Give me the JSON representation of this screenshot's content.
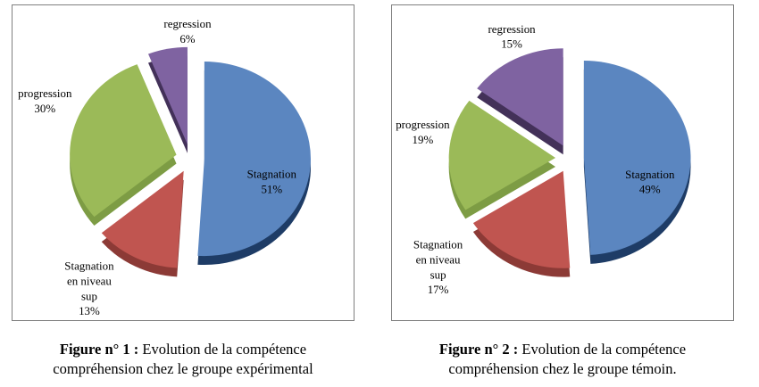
{
  "page": {
    "background": "#ffffff",
    "border_color": "#7f7f7f",
    "text_color": "#000000"
  },
  "chart_data": [
    {
      "type": "pie",
      "style": "3d-exploded",
      "title_bold": "Figure n° 1 :",
      "title_text": "Evolution de la compétence compréhension chez le groupe expérimental",
      "start_angle_deg": 0,
      "clockwise": true,
      "legend": "none",
      "slices": [
        {
          "label": "Stagnation",
          "value": 51,
          "pct_text": "51%",
          "color": "#5b86c0",
          "side_color": "#1e3c66",
          "label_lines": [
            "Stagnation",
            "51%"
          ],
          "label_inside": true,
          "label_pos": {
            "x": 76.0,
            "y": 53.7
          }
        },
        {
          "label": "Stagnation en niveau sup",
          "value": 13,
          "pct_text": "13%",
          "color": "#c05550",
          "side_color": "#8c3a36",
          "label_lines": [
            "Stagnation",
            "en niveau",
            "sup",
            "13%"
          ],
          "label_inside": false,
          "label_pos": {
            "x": 22.5,
            "y": 82.9
          }
        },
        {
          "label": "progression",
          "value": 30,
          "pct_text": "30%",
          "color": "#9bba58",
          "side_color": "#7d9c44",
          "label_lines": [
            "progression",
            "30%"
          ],
          "label_inside": false,
          "label_pos": {
            "x": 9.5,
            "y": 28.1
          }
        },
        {
          "label": "regression",
          "value": 6,
          "pct_text": "6%",
          "color": "#7f63a1",
          "side_color": "#433159",
          "label_lines": [
            "regression",
            "6%"
          ],
          "label_inside": false,
          "label_pos": {
            "x": 51.3,
            "y": 6.0
          }
        }
      ]
    },
    {
      "type": "pie",
      "style": "3d-exploded",
      "title_bold": "Figure n° 2 :",
      "title_text": "Evolution de la compétence compréhension chez le groupe témoin.",
      "start_angle_deg": 0,
      "clockwise": true,
      "legend": "none",
      "slices": [
        {
          "label": "Stagnation",
          "value": 49,
          "pct_text": "49%",
          "color": "#5b86c0",
          "side_color": "#1e3c66",
          "label_lines": [
            "Stagnation",
            "49%"
          ],
          "label_inside": true,
          "label_pos": {
            "x": 75.6,
            "y": 53.8
          }
        },
        {
          "label": "Stagnation en niveau sup",
          "value": 17,
          "pct_text": "17%",
          "color": "#c05550",
          "side_color": "#8c3a36",
          "label_lines": [
            "Stagnation",
            "en niveau",
            "sup",
            "17%"
          ],
          "label_inside": false,
          "label_pos": {
            "x": 13.5,
            "y": 76.1
          }
        },
        {
          "label": "progression",
          "value": 19,
          "pct_text": "19%",
          "color": "#9bba58",
          "side_color": "#7d9c44",
          "label_lines": [
            "progression",
            "19%"
          ],
          "label_inside": false,
          "label_pos": {
            "x": 9.0,
            "y": 38.0
          }
        },
        {
          "label": "regression",
          "value": 15,
          "pct_text": "15%",
          "color": "#7f63a1",
          "side_color": "#433159",
          "label_lines": [
            "regression",
            "15%"
          ],
          "label_inside": false,
          "label_pos": {
            "x": 35.1,
            "y": 7.6
          }
        }
      ]
    }
  ]
}
